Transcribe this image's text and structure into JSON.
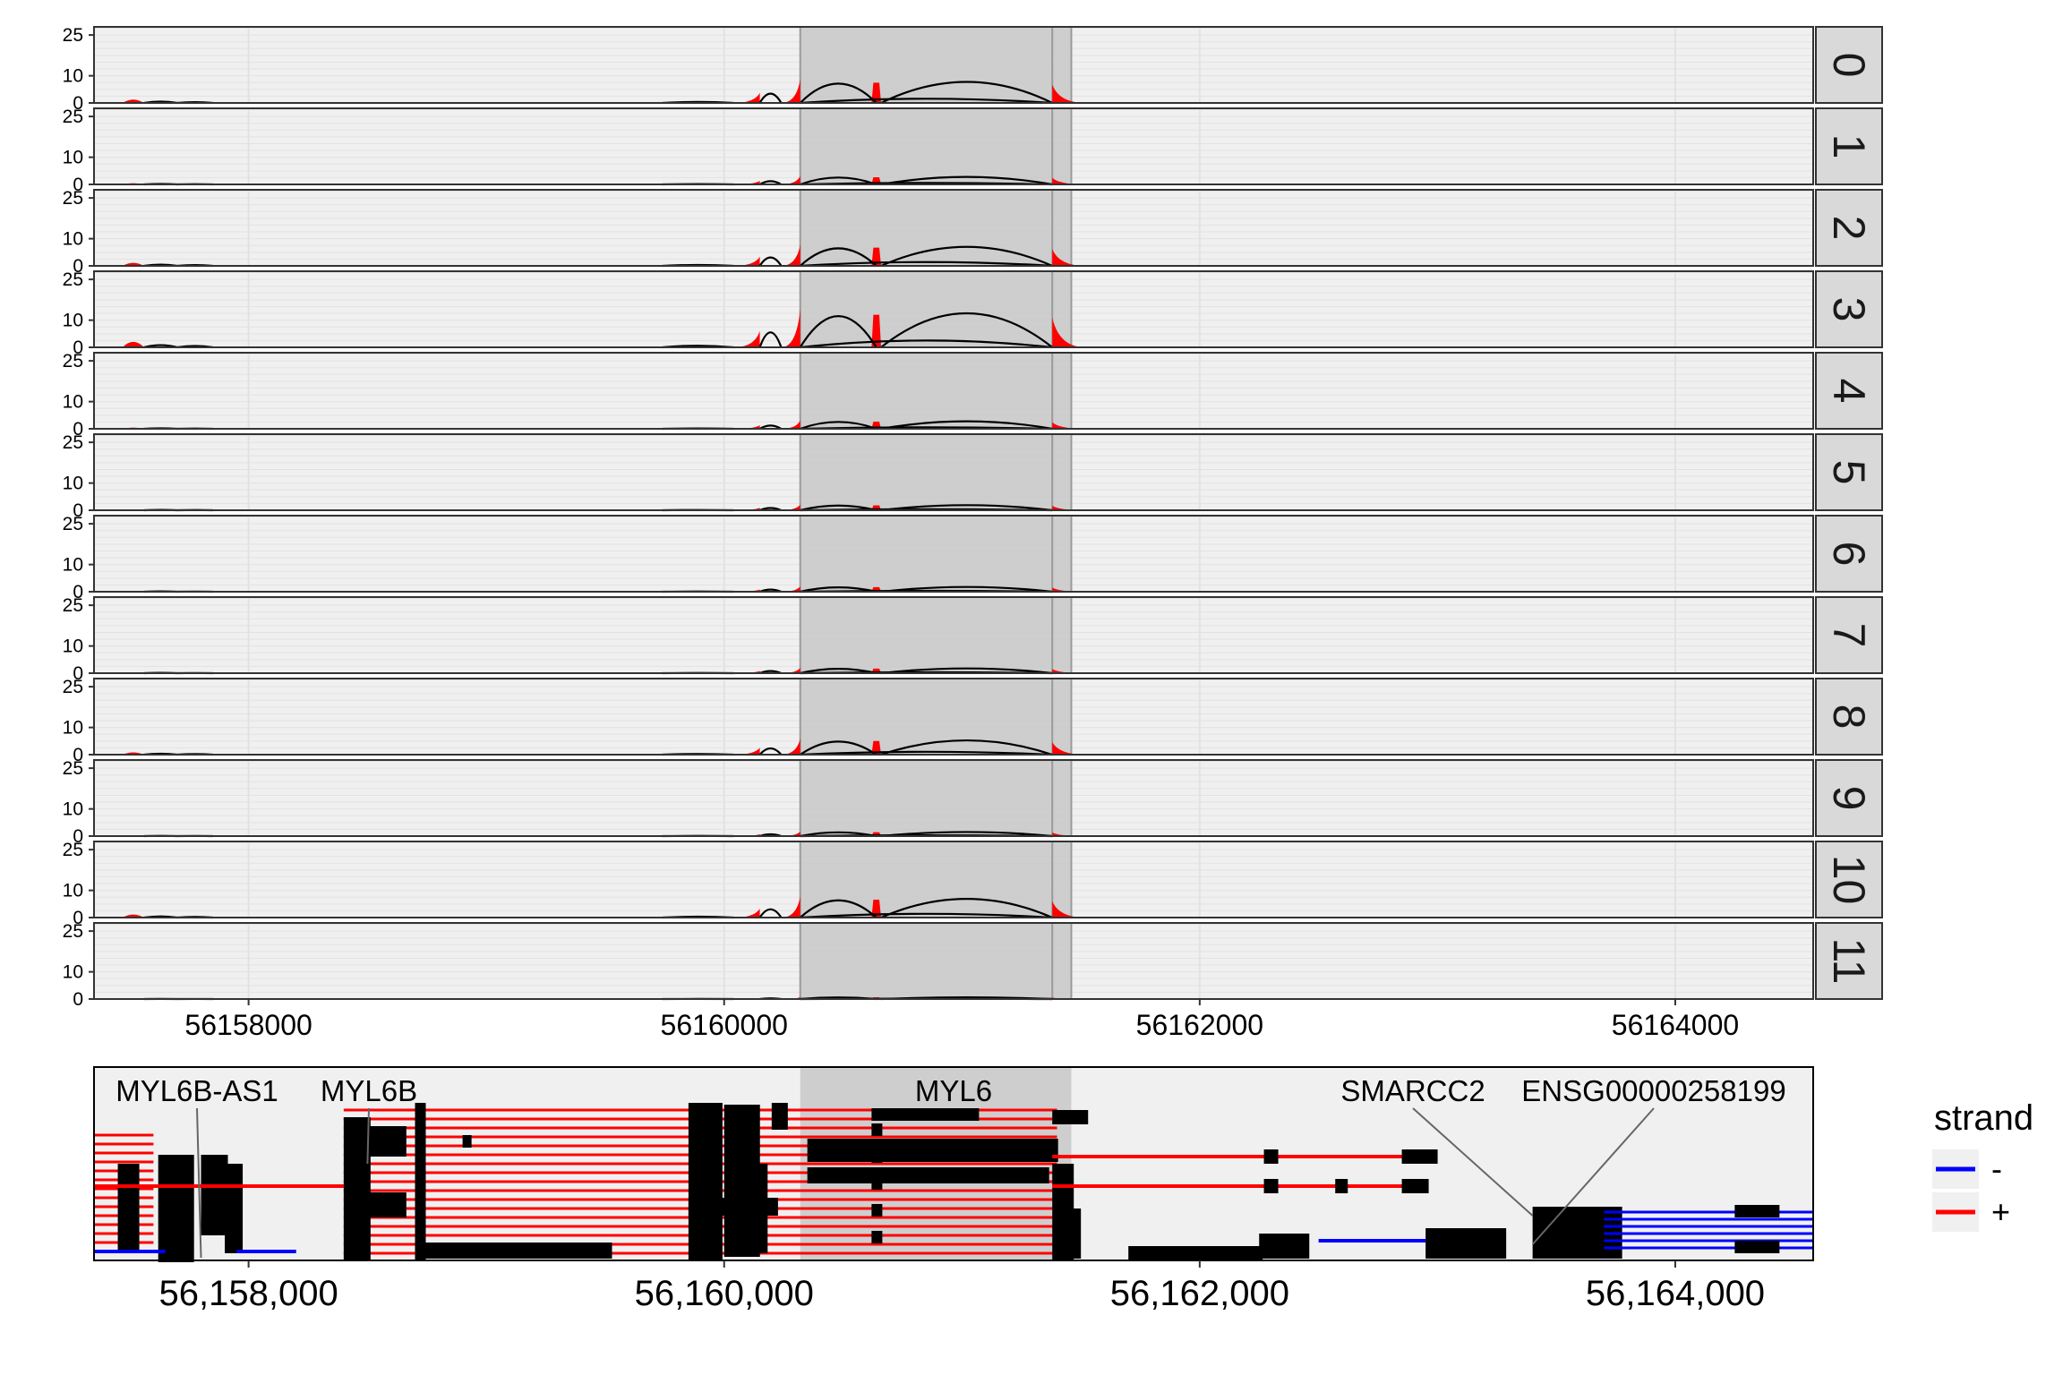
{
  "chart_data": [
    {
      "type": "area",
      "x_range": [
        56157350,
        56164580
      ],
      "ylim": [
        0,
        28
      ],
      "y_ticks": [
        0,
        10,
        25
      ],
      "x_ticks": [
        56158000,
        56160000,
        56162000,
        56164000
      ],
      "x_tick_labels": [
        "56158000",
        "56160000",
        "56162000",
        "56164000"
      ],
      "highlight_region": [
        56160320,
        56161460
      ],
      "highlight_inner_line": 56161380,
      "coverage_color": "#ff0000",
      "junction_color": "#000000",
      "facets": [
        {
          "label": "0",
          "scale": 0.62
        },
        {
          "label": "1",
          "scale": 0.22
        },
        {
          "label": "2",
          "scale": 0.56
        },
        {
          "label": "3",
          "scale": 1.0
        },
        {
          "label": "4",
          "scale": 0.22
        },
        {
          "label": "5",
          "scale": 0.15
        },
        {
          "label": "6",
          "scale": 0.14
        },
        {
          "label": "7",
          "scale": 0.14
        },
        {
          "label": "8",
          "scale": 0.42
        },
        {
          "label": "9",
          "scale": 0.12
        },
        {
          "label": "10",
          "scale": 0.55
        },
        {
          "label": "11",
          "scale": 0.05
        }
      ],
      "coverage_profile": [
        {
          "x0": 56157470,
          "x1": 56157560,
          "h": 2.0
        },
        {
          "x0": 56160040,
          "x1": 56160150,
          "h": 6.0,
          "shape": "ramp-up"
        },
        {
          "x0": 56160240,
          "x1": 56160320,
          "h": 14.0,
          "shape": "ramp-up"
        },
        {
          "x0": 56160620,
          "x1": 56160660,
          "h": 12.0,
          "shape": "block"
        },
        {
          "x0": 56161380,
          "x1": 56161520,
          "h": 11.0,
          "shape": "ramp-down"
        }
      ],
      "junctions": [
        {
          "start": 56160150,
          "end": 56160240,
          "height": 5.5
        },
        {
          "start": 56160320,
          "end": 56160640,
          "height": 11.5
        },
        {
          "start": 56160660,
          "end": 56161380,
          "height": 12.5
        },
        {
          "start": 56160320,
          "end": 56161380,
          "height": 2.5
        },
        {
          "start": 56157560,
          "end": 56157700,
          "height": 0.8
        },
        {
          "start": 56157700,
          "end": 56157850,
          "height": 0.5
        },
        {
          "start": 56159740,
          "end": 56160040,
          "height": 0.6
        }
      ]
    },
    {
      "type": "gene_track",
      "x_range": [
        56157350,
        56164580
      ],
      "x_ticks": [
        56158000,
        56160000,
        56162000,
        56164000
      ],
      "x_tick_labels": [
        "56,158,000",
        "56,160,000",
        "56,162,000",
        "56,164,000"
      ],
      "genes": [
        {
          "name": "MYL6B-AS1",
          "strand": "-",
          "label_x": 56157800
        },
        {
          "name": "MYL6B",
          "strand": "+",
          "label_x": 56158500
        },
        {
          "name": "MYL6",
          "strand": "+",
          "label_x": 56160900
        },
        {
          "name": "SMARCC2",
          "strand": "+",
          "label_x": 56162950
        },
        {
          "name": "ENSG00000258199",
          "strand": "-",
          "label_x": 56163700
        }
      ],
      "legend": {
        "title": "strand",
        "entries": [
          {
            "label": "-",
            "color": "#0000ff"
          },
          {
            "label": "+",
            "color": "#ff0000"
          }
        ],
        "position": "right"
      }
    }
  ]
}
